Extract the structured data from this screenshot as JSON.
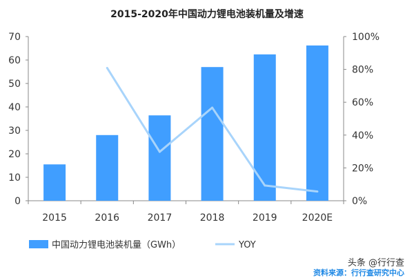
{
  "chart_data": {
    "type": "bar+line",
    "title": "2015-2020年中国动力锂电池装机量及增速",
    "categories": [
      "2015",
      "2016",
      "2017",
      "2018",
      "2019",
      "2020E"
    ],
    "series": [
      {
        "name": "中国动力锂电池装机量（GWh）",
        "type": "bar",
        "axis": "left",
        "color": "#409eff",
        "values": [
          15.5,
          28.0,
          36.4,
          57.0,
          62.4,
          66.2
        ]
      },
      {
        "name": "YOY",
        "type": "line",
        "axis": "right",
        "color": "#a8d4fb",
        "values": [
          null,
          80.9,
          29.8,
          56.7,
          9.3,
          5.6
        ]
      }
    ],
    "left_axis": {
      "range": [
        0,
        70
      ],
      "ticks": [
        "0",
        "10",
        "20",
        "30",
        "40",
        "50",
        "60",
        "70"
      ]
    },
    "right_axis": {
      "range": [
        0,
        100
      ],
      "ticks": [
        "0%",
        "20%",
        "40%",
        "60%",
        "80%",
        "100%"
      ]
    },
    "grid": false,
    "legend_placement": "bottom"
  },
  "watermark": {
    "platform": "头条 @行行查",
    "source": "资料来源：行行查研究中心"
  }
}
